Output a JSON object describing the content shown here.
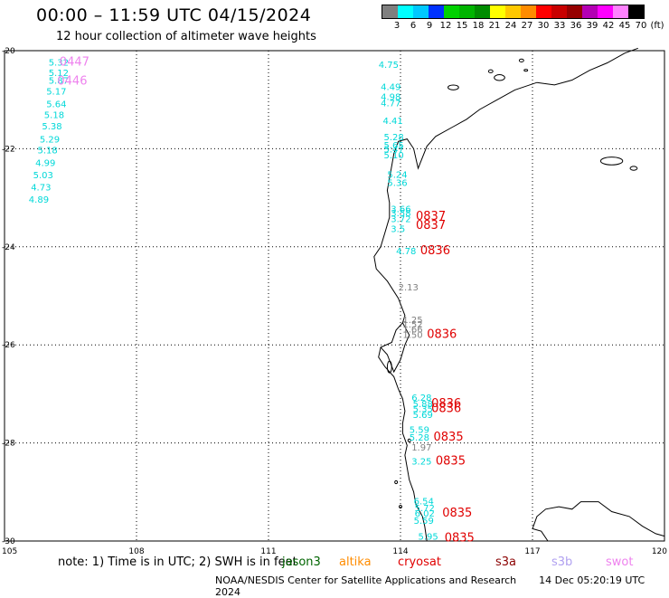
{
  "header": {
    "title": "00:00 – 11:59 UTC 04/15/2024",
    "subtitle": "12 hour collection of altimeter wave heights"
  },
  "legend": {
    "colors": [
      "#7f7f7f",
      "#00ffff",
      "#00c8ff",
      "#0032ff",
      "#00d200",
      "#00b400",
      "#008c00",
      "#ffff00",
      "#ffc800",
      "#ff8c00",
      "#ff0000",
      "#c80000",
      "#960000",
      "#b400b4",
      "#ff00ff",
      "#ff82ff",
      "#000000"
    ],
    "labels": [
      "3",
      "6",
      "9",
      "12",
      "15",
      "18",
      "21",
      "24",
      "27",
      "30",
      "33",
      "36",
      "39",
      "42",
      "45",
      "70",
      "(ft)"
    ]
  },
  "axes": {
    "lon_labels": [
      "105",
      "108",
      "111",
      "114",
      "117",
      "120"
    ],
    "lat_labels": [
      "-20",
      "-22",
      "-24",
      "-26",
      "-28",
      "-30"
    ]
  },
  "observations": [
    {
      "text": "5.32",
      "lon": 106.0,
      "lat": -20.23,
      "color": "#00d8d8"
    },
    {
      "text": "5.12",
      "lon": 106.0,
      "lat": -20.44,
      "color": "#00d8d8"
    },
    {
      "text": "5.87",
      "lon": 106.0,
      "lat": -20.6,
      "color": "#00d8d8"
    },
    {
      "text": "5.17",
      "lon": 105.95,
      "lat": -20.82,
      "color": "#00d8d8"
    },
    {
      "text": "5.64",
      "lon": 105.95,
      "lat": -21.08,
      "color": "#00d8d8"
    },
    {
      "text": "5.18",
      "lon": 105.9,
      "lat": -21.3,
      "color": "#00d8d8"
    },
    {
      "text": "5.38",
      "lon": 105.85,
      "lat": -21.53,
      "color": "#00d8d8"
    },
    {
      "text": "5.29",
      "lon": 105.8,
      "lat": -21.8,
      "color": "#00d8d8"
    },
    {
      "text": "5.18",
      "lon": 105.75,
      "lat": -22.02,
      "color": "#00d8d8"
    },
    {
      "text": "4.99",
      "lon": 105.7,
      "lat": -22.28,
      "color": "#00d8d8"
    },
    {
      "text": "5.03",
      "lon": 105.65,
      "lat": -22.53,
      "color": "#00d8d8"
    },
    {
      "text": "4.73",
      "lon": 105.6,
      "lat": -22.78,
      "color": "#00d8d8"
    },
    {
      "text": "4.89",
      "lon": 105.55,
      "lat": -23.03,
      "color": "#00d8d8"
    },
    {
      "text": "0447",
      "lon": 106.25,
      "lat": -20.23,
      "color": "#ee82ee"
    },
    {
      "text": "0446",
      "lon": 106.2,
      "lat": -20.62,
      "color": "#ee82ee"
    },
    {
      "text": "4.75",
      "lon": 113.5,
      "lat": -20.28,
      "color": "#00d8d8"
    },
    {
      "text": "4.49",
      "lon": 113.55,
      "lat": -20.73,
      "color": "#00d8d8"
    },
    {
      "text": "4.98",
      "lon": 113.55,
      "lat": -20.93,
      "color": "#00d8d8"
    },
    {
      "text": "4.77",
      "lon": 113.55,
      "lat": -21.06,
      "color": "#00d8d8"
    },
    {
      "text": "4.41",
      "lon": 113.6,
      "lat": -21.42,
      "color": "#00d8d8"
    },
    {
      "text": "5.28",
      "lon": 113.62,
      "lat": -21.75,
      "color": "#00d8d8"
    },
    {
      "text": "5.65",
      "lon": 113.62,
      "lat": -21.92,
      "color": "#00d8d8"
    },
    {
      "text": "5.47",
      "lon": 113.62,
      "lat": -22.0,
      "color": "#00d8d8"
    },
    {
      "text": "5.10",
      "lon": 113.62,
      "lat": -22.12,
      "color": "#00d8d8"
    },
    {
      "text": "5.24",
      "lon": 113.7,
      "lat": -22.52,
      "color": "#00d8d8"
    },
    {
      "text": "5.36",
      "lon": 113.7,
      "lat": -22.68,
      "color": "#00d8d8"
    },
    {
      "text": "3.66",
      "lon": 113.78,
      "lat": -23.22,
      "color": "#00d8d8"
    },
    {
      "text": "3.58",
      "lon": 113.78,
      "lat": -23.3,
      "color": "#00d8d8"
    },
    {
      "text": "3.72",
      "lon": 113.78,
      "lat": -23.42,
      "color": "#00d8d8"
    },
    {
      "text": "3.5",
      "lon": 113.78,
      "lat": -23.63,
      "color": "#00d8d8"
    },
    {
      "text": "0837",
      "lon": 114.35,
      "lat": -23.38,
      "color": "#e00000"
    },
    {
      "text": "0837",
      "lon": 114.35,
      "lat": -23.56,
      "color": "#e00000"
    },
    {
      "text": "4.78",
      "lon": 113.9,
      "lat": -24.08,
      "color": "#00d8d8"
    },
    {
      "text": "0836",
      "lon": 114.45,
      "lat": -24.08,
      "color": "#e00000"
    },
    {
      "text": "2.13",
      "lon": 113.95,
      "lat": -24.82,
      "color": "#808080"
    },
    {
      "text": "1.25",
      "lon": 114.05,
      "lat": -25.48,
      "color": "#808080"
    },
    {
      "text": "1.52",
      "lon": 114.05,
      "lat": -25.57,
      "color": "#808080"
    },
    {
      "text": "1.66",
      "lon": 114.05,
      "lat": -25.67,
      "color": "#808080"
    },
    {
      "text": "1.50",
      "lon": 114.05,
      "lat": -25.78,
      "color": "#808080"
    },
    {
      "text": "0836",
      "lon": 114.6,
      "lat": -25.78,
      "color": "#e00000"
    },
    {
      "text": "6.28",
      "lon": 114.25,
      "lat": -27.07,
      "color": "#00d8d8"
    },
    {
      "text": "5.88",
      "lon": 114.28,
      "lat": -27.2,
      "color": "#00d8d8"
    },
    {
      "text": "5.35",
      "lon": 114.28,
      "lat": -27.3,
      "color": "#00d8d8"
    },
    {
      "text": "5.69",
      "lon": 114.28,
      "lat": -27.42,
      "color": "#00d8d8"
    },
    {
      "text": "0836",
      "lon": 114.7,
      "lat": -27.2,
      "color": "#e00000"
    },
    {
      "text": "0836",
      "lon": 114.7,
      "lat": -27.3,
      "color": "#e00000"
    },
    {
      "text": "5.59",
      "lon": 114.2,
      "lat": -27.72,
      "color": "#00d8d8"
    },
    {
      "text": "5.28",
      "lon": 114.2,
      "lat": -27.88,
      "color": "#00d8d8"
    },
    {
      "text": "0835",
      "lon": 114.75,
      "lat": -27.88,
      "color": "#e00000"
    },
    {
      "text": "1.97",
      "lon": 114.25,
      "lat": -28.08,
      "color": "#808080"
    },
    {
      "text": "3.25",
      "lon": 114.25,
      "lat": -28.37,
      "color": "#00d8d8"
    },
    {
      "text": "0835",
      "lon": 114.8,
      "lat": -28.37,
      "color": "#e00000"
    },
    {
      "text": "6.54",
      "lon": 114.3,
      "lat": -29.18,
      "color": "#00d8d8"
    },
    {
      "text": "5.72",
      "lon": 114.32,
      "lat": -29.32,
      "color": "#00d8d8"
    },
    {
      "text": "6.02",
      "lon": 114.32,
      "lat": -29.43,
      "color": "#00d8d8"
    },
    {
      "text": "5.59",
      "lon": 114.3,
      "lat": -29.58,
      "color": "#00d8d8"
    },
    {
      "text": "0835",
      "lon": 114.95,
      "lat": -29.43,
      "color": "#e00000"
    },
    {
      "text": "5.95",
      "lon": 114.4,
      "lat": -29.9,
      "color": "#00d8d8"
    },
    {
      "text": "0835",
      "lon": 115.0,
      "lat": -29.94,
      "color": "#e00000"
    }
  ],
  "footer": {
    "note": "note: 1) Time is in UTC; 2) SWH is in feet",
    "satellites": [
      {
        "name": "jason3",
        "color": "#006400"
      },
      {
        "name": "altika",
        "color": "#ff8c00"
      },
      {
        "name": "cryosat",
        "color": "#e00000"
      },
      {
        "name": "s3a",
        "color": "#8b0000"
      },
      {
        "name": "s3b",
        "color": "#b0a0f0"
      },
      {
        "name": "swot",
        "color": "#ee82ee"
      }
    ],
    "credit": "NOAA/NESDIS Center for Satellite Applications and Research",
    "timestamp": "14 Dec 05:20:19 UTC 2024"
  }
}
